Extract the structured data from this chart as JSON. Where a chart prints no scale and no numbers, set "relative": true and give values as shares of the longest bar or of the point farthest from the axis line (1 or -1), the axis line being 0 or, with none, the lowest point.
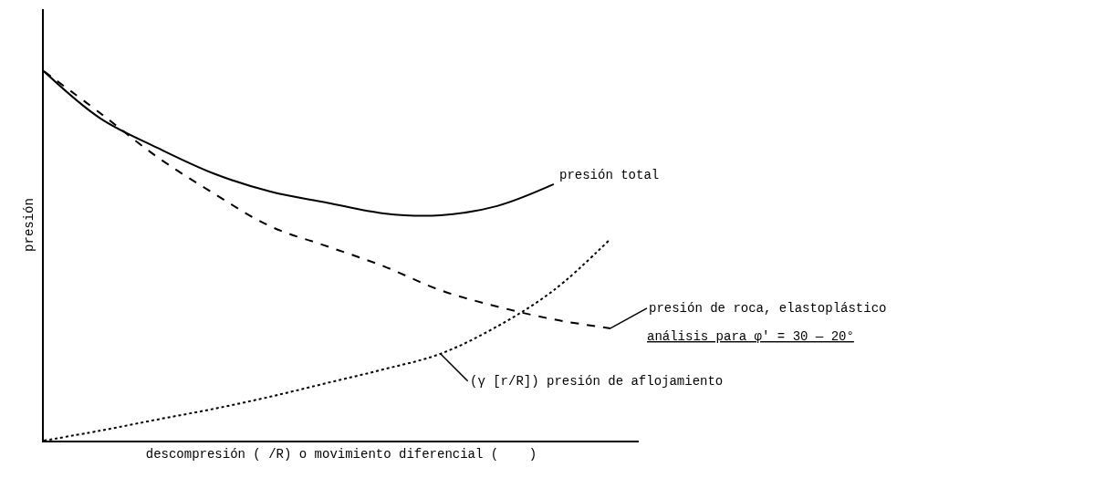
{
  "chart_data": {
    "type": "line",
    "relative": true,
    "xlabel": "descompresión ( /R) o movimiento diferencial (    )",
    "ylabel": "presión",
    "categories": [
      null,
      null,
      null,
      null,
      null,
      null,
      null,
      null,
      null,
      null,
      null
    ],
    "series": [
      {
        "name": "presión total",
        "color": "#000000",
        "line_style": "solid",
        "values": [
          1,
          0.872,
          0.793,
          0.723,
          0.674,
          0.644,
          0.615,
          0.61,
          0.635,
          0.694,
          null
        ]
      },
      {
        "name": "presión de roca, elastoplástico",
        "color": "#000000",
        "line_style": "dashed",
        "values": [
          1,
          0.886,
          0.768,
          0.669,
          0.58,
          0.526,
          0.472,
          0.407,
          0.363,
          0.328,
          0.304
        ]
      },
      {
        "name": "(γ [r/R]) presión de aflojamiento",
        "color": "#000000",
        "line_style": "dotted",
        "values": [
          0,
          0.027,
          0.057,
          0.086,
          0.119,
          0.156,
          0.193,
          0.235,
          0.309,
          0.407,
          0.546
        ]
      }
    ],
    "annotations": [
      "análisis para φ' = 30 — 20°"
    ],
    "marker": "none"
  }
}
